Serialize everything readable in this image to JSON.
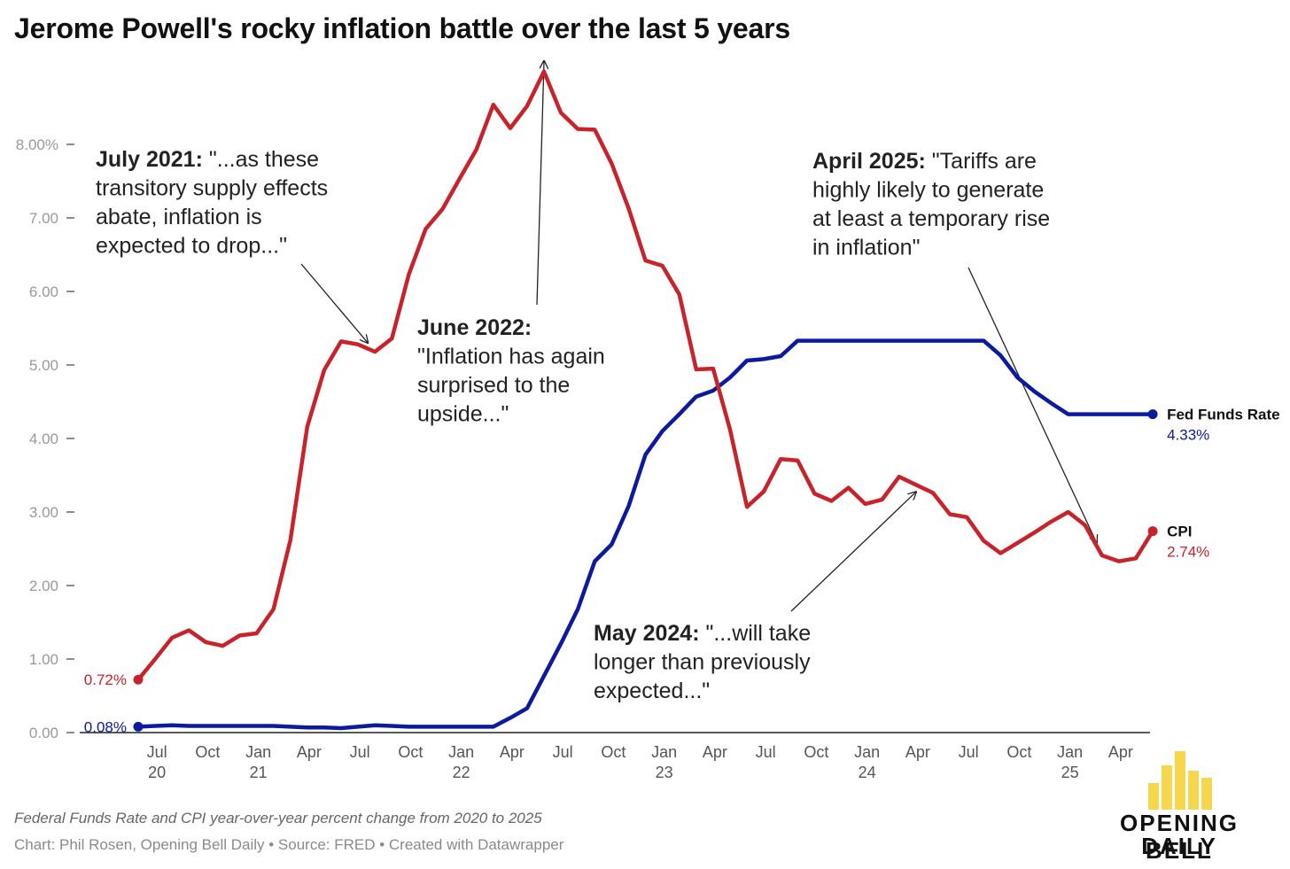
{
  "chart_data": {
    "type": "line",
    "title": "Jerome Powell's rocky inflation battle over the last 5 years",
    "description": "Federal Funds Rate and CPI year-over-year percent change from 2020 to 2025",
    "notes": "Chart: Phil Rosen, Opening Bell Daily • Source: FRED • Created with Datawrapper",
    "brand": [
      "OPENING BELL",
      "DAILY"
    ],
    "ylim": [
      0,
      9
    ],
    "xlim": [
      0,
      59
    ],
    "y_ticks": [
      {
        "value": 0,
        "label": "0.00"
      },
      {
        "value": 1,
        "label": "1.00"
      },
      {
        "value": 2,
        "label": "2.00"
      },
      {
        "value": 3,
        "label": "3.00"
      },
      {
        "value": 4,
        "label": "4.00"
      },
      {
        "value": 5,
        "label": "5.00"
      },
      {
        "value": 6,
        "label": "6.00"
      },
      {
        "value": 7,
        "label": "7.00"
      },
      {
        "value": 8,
        "label": "8.00%"
      }
    ],
    "x_ticks": [
      {
        "month_index": 1,
        "label": "Jul",
        "sub": "20"
      },
      {
        "month_index": 4,
        "label": "Oct",
        "sub": ""
      },
      {
        "month_index": 7,
        "label": "Jan",
        "sub": "21"
      },
      {
        "month_index": 10,
        "label": "Apr",
        "sub": ""
      },
      {
        "month_index": 13,
        "label": "Jul",
        "sub": ""
      },
      {
        "month_index": 16,
        "label": "Oct",
        "sub": ""
      },
      {
        "month_index": 19,
        "label": "Jan",
        "sub": "22"
      },
      {
        "month_index": 22,
        "label": "Apr",
        "sub": ""
      },
      {
        "month_index": 25,
        "label": "Jul",
        "sub": ""
      },
      {
        "month_index": 28,
        "label": "Oct",
        "sub": ""
      },
      {
        "month_index": 31,
        "label": "Jan",
        "sub": "23"
      },
      {
        "month_index": 34,
        "label": "Apr",
        "sub": ""
      },
      {
        "month_index": 37,
        "label": "Jul",
        "sub": ""
      },
      {
        "month_index": 40,
        "label": "Oct",
        "sub": ""
      },
      {
        "month_index": 43,
        "label": "Jan",
        "sub": "24"
      },
      {
        "month_index": 46,
        "label": "Apr",
        "sub": ""
      },
      {
        "month_index": 49,
        "label": "Jul",
        "sub": ""
      },
      {
        "month_index": 52,
        "label": "Oct",
        "sub": ""
      },
      {
        "month_index": 55,
        "label": "Jan",
        "sub": "25"
      },
      {
        "month_index": 58,
        "label": "Apr",
        "sub": ""
      }
    ],
    "series": [
      {
        "name": "CPI",
        "color": "#c8222a",
        "start_label": "0.72%",
        "end_label": "2.74%",
        "values": [
          0.72,
          1.0,
          1.29,
          1.39,
          1.23,
          1.18,
          1.32,
          1.35,
          1.68,
          2.62,
          4.16,
          4.93,
          5.32,
          5.28,
          5.18,
          5.36,
          6.23,
          6.85,
          7.12,
          7.53,
          7.93,
          8.54,
          8.22,
          8.52,
          8.99,
          8.43,
          8.21,
          8.2,
          7.74,
          7.13,
          6.42,
          6.35,
          5.96,
          4.94,
          4.95,
          4.12,
          3.07,
          3.28,
          3.72,
          3.7,
          3.25,
          3.15,
          3.33,
          3.11,
          3.17,
          3.48,
          3.37,
          3.26,
          2.97,
          2.93,
          2.61,
          2.44,
          2.58,
          2.72,
          2.87,
          3.0,
          2.82,
          2.41,
          2.33,
          2.37,
          2.74
        ]
      },
      {
        "name": "Fed Funds Rate",
        "color": "#0c1a9e",
        "start_label": "0.08%",
        "end_label": "4.33%",
        "values": [
          0.08,
          0.09,
          0.1,
          0.09,
          0.09,
          0.09,
          0.09,
          0.09,
          0.09,
          0.08,
          0.07,
          0.07,
          0.06,
          0.08,
          0.1,
          0.09,
          0.08,
          0.08,
          0.08,
          0.08,
          0.08,
          0.08,
          0.2,
          0.33,
          0.77,
          1.21,
          1.68,
          2.33,
          2.56,
          3.08,
          3.78,
          4.1,
          4.33,
          4.57,
          4.65,
          4.83,
          5.06,
          5.08,
          5.12,
          5.33,
          5.33,
          5.33,
          5.33,
          5.33,
          5.33,
          5.33,
          5.33,
          5.33,
          5.33,
          5.33,
          5.33,
          5.13,
          4.83,
          4.64,
          4.48,
          4.33,
          4.33,
          4.33,
          4.33,
          4.33,
          4.33
        ]
      }
    ],
    "annotations": [
      {
        "bold": "July 2021:",
        "lines": [
          " \"...as these",
          "transitory supply effects",
          "abate, inflation is",
          "expected to drop...\""
        ],
        "series": "CPI",
        "month_index": 14
      },
      {
        "bold": "June 2022:",
        "lines": [
          "",
          "\"Inflation has again",
          "surprised to the",
          "upside...\""
        ],
        "series": "CPI",
        "month_index": 24
      },
      {
        "bold": "April 2025:",
        "lines": [
          " \"Tariffs are",
          "highly likely to generate",
          "at least a temporary rise",
          "in inflation\""
        ],
        "series": "CPI",
        "month_index": 57
      },
      {
        "bold": "May 2024:",
        "lines": [
          " \"...will take",
          "longer than previously",
          "expected...\""
        ],
        "series": "CPI",
        "month_index": 46
      }
    ]
  }
}
